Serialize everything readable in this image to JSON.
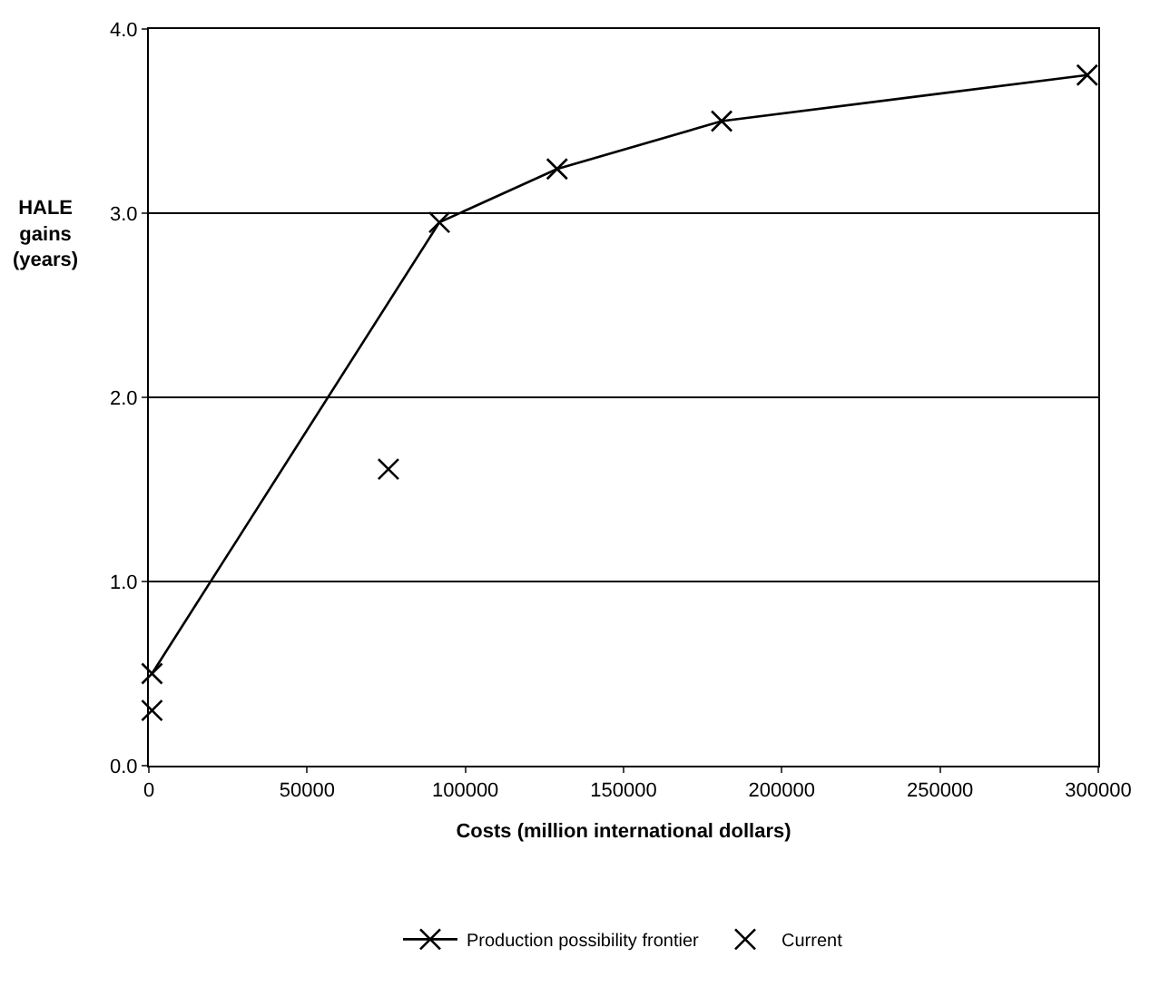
{
  "chart_data": {
    "type": "line",
    "xlabel": "Costs (million international dollars)",
    "ylabel": "HALE\ngains\n(years)",
    "xlim": [
      0,
      300000
    ],
    "xticks": [
      0,
      50000,
      100000,
      150000,
      200000,
      250000,
      300000
    ],
    "ylim": [
      0,
      4
    ],
    "yticks": [
      {
        "value": 0,
        "label": "0.0"
      },
      {
        "value": 1,
        "label": "1.0"
      },
      {
        "value": 2,
        "label": "2.0"
      },
      {
        "value": 3,
        "label": "3.0"
      },
      {
        "value": 4,
        "label": "4.0"
      }
    ],
    "grid": "y",
    "legend": "bottom",
    "series": [
      {
        "name": "Production possibility frontier",
        "color": "#000000",
        "marker": "cross",
        "line_style": "solid",
        "x": [
          1000,
          91800,
          129000,
          181000,
          296500
        ],
        "values": [
          0.5,
          2.95,
          3.24,
          3.5,
          3.75
        ]
      },
      {
        "name": "Current",
        "type": "scatter",
        "color": "#000000",
        "marker": "cross",
        "x": [
          1000,
          75700
        ],
        "values": [
          0.3,
          1.61
        ]
      }
    ]
  }
}
